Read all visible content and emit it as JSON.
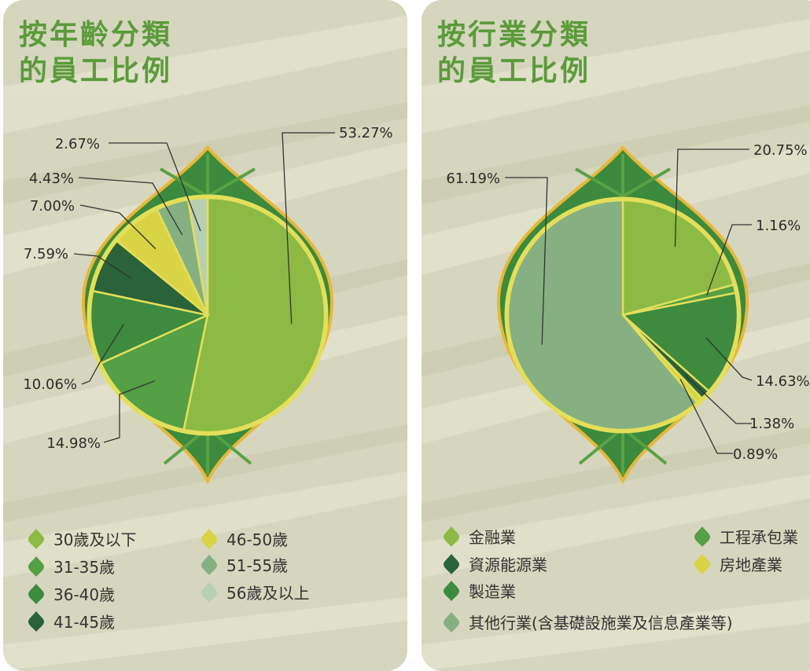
{
  "chart_data": [
    {
      "type": "pie",
      "title": "按年齡分類的員工比例",
      "title_lines": [
        "按年齡分類",
        "的員工比例"
      ],
      "categories": [
        "30歲及以下",
        "31-35歲",
        "36-40歲",
        "41-45歲",
        "46-50歲",
        "51-55歲",
        "56歲及以上"
      ],
      "values": [
        53.27,
        14.98,
        10.06,
        7.59,
        7.0,
        4.43,
        2.67
      ],
      "value_labels": [
        "53.27%",
        "14.98%",
        "10.06%",
        "7.59%",
        "7.00%",
        "4.43%",
        "2.67%"
      ],
      "colors": [
        "#8cba45",
        "#559f45",
        "#3e8a3e",
        "#2a6339",
        "#d8d445",
        "#86af82",
        "#b8d0b2"
      ],
      "legend_placement": "bottom"
    },
    {
      "type": "pie",
      "title": "按行業分類的員工比例",
      "title_lines": [
        "按行業分類",
        "的員工比例"
      ],
      "categories": [
        "金融業",
        "工程承包業",
        "製造業",
        "資源能源業",
        "房地產業",
        "其他行業(含基礎設施業及信息產業等)"
      ],
      "values": [
        20.75,
        1.16,
        14.63,
        1.38,
        0.89,
        61.19
      ],
      "value_labels": [
        "20.75%",
        "1.16%",
        "14.63%",
        "1.38%",
        "0.89%",
        "61.19%"
      ],
      "colors": [
        "#8cba45",
        "#559f45",
        "#3e8a3e",
        "#2a6339",
        "#d8d445",
        "#86af82"
      ],
      "legend_order": [
        0,
        3,
        2,
        5,
        1,
        4
      ],
      "legend_placement": "bottom"
    }
  ]
}
